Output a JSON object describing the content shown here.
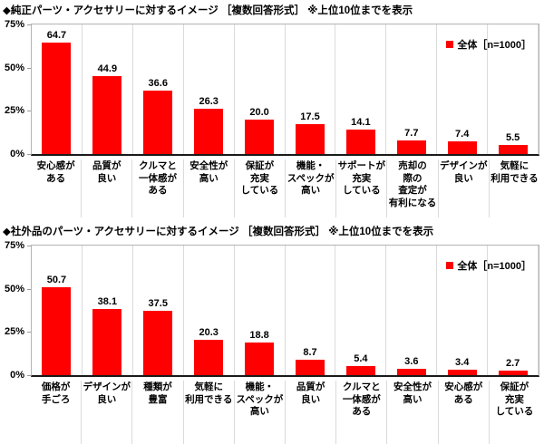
{
  "palette": {
    "bar_color": "#fe0000",
    "grid_color": "#dadada",
    "plot_border_color": "#b3b3b3",
    "axis_line_color": "#1a1a1a",
    "text_color": "#000000",
    "background": "#ffffff"
  },
  "chart_data": [
    {
      "type": "bar",
      "title": "◆純正パーツ・アクセサリーに対するイメージ ［複数回答形式］ ※上位10位までを表示",
      "legend": "全体［n=1000］",
      "legend_position": "top-right",
      "grid": "vertical-only",
      "ylim": [
        0,
        75
      ],
      "y_tick_labels": [
        "0%",
        "25%",
        "50%",
        "75%"
      ],
      "categories": [
        "安心感が\nある",
        "品質が\n良い",
        "クルマと\n一体感が\nある",
        "安全性が\n高い",
        "保証が\n充実\nしている",
        "機能・\nスペックが\n高い",
        "サポートが\n充実\nしている",
        "売却の\n際の\n査定が\n有利になる",
        "デザインが\n良い",
        "気軽に\n利用できる"
      ],
      "values": [
        64.7,
        44.9,
        36.6,
        26.3,
        20.0,
        17.5,
        14.1,
        7.7,
        7.4,
        5.5
      ],
      "value_labels": [
        "64.7",
        "44.9",
        "36.6",
        "26.3",
        "20.0",
        "17.5",
        "14.1",
        "7.7",
        "7.4",
        "5.5"
      ]
    },
    {
      "type": "bar",
      "title": "◆社外品のパーツ・アクセサリーに対するイメージ ［複数回答形式］ ※上位10位までを表示",
      "legend": "全体［n=1000］",
      "legend_position": "top-right",
      "grid": "vertical-only",
      "ylim": [
        0,
        75
      ],
      "y_tick_labels": [
        "0%",
        "25%",
        "50%",
        "75%"
      ],
      "categories": [
        "価格が\n手ごろ",
        "デザインが\n良い",
        "種類が\n豊富",
        "気軽に\n利用できる",
        "機能・\nスペックが\n高い",
        "品質が\n良い",
        "クルマと\n一体感が\nある",
        "安全性が\n高い",
        "安心感が\nある",
        "保証が\n充実\nしている"
      ],
      "values": [
        50.7,
        38.1,
        37.5,
        20.3,
        18.8,
        8.7,
        5.4,
        3.6,
        3.4,
        2.7
      ],
      "value_labels": [
        "50.7",
        "38.1",
        "37.5",
        "20.3",
        "18.8",
        "8.7",
        "5.4",
        "3.6",
        "3.4",
        "2.7"
      ]
    }
  ]
}
